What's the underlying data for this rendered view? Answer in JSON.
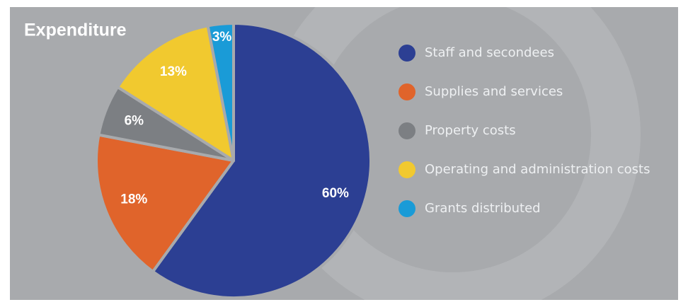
{
  "chart_data": {
    "type": "pie",
    "title": "Expenditure",
    "categories": [
      "Staff and secondees",
      "Supplies and services",
      "Property costs",
      "Operating and administration costs",
      "Grants distributed"
    ],
    "values": [
      60,
      18,
      6,
      13,
      3
    ],
    "value_labels": [
      "60%",
      "18%",
      "6%",
      "13%",
      "3%"
    ],
    "colors": [
      "#2c3f93",
      "#e0642b",
      "#7c7f83",
      "#f1c92f",
      "#1a9bd7"
    ]
  }
}
